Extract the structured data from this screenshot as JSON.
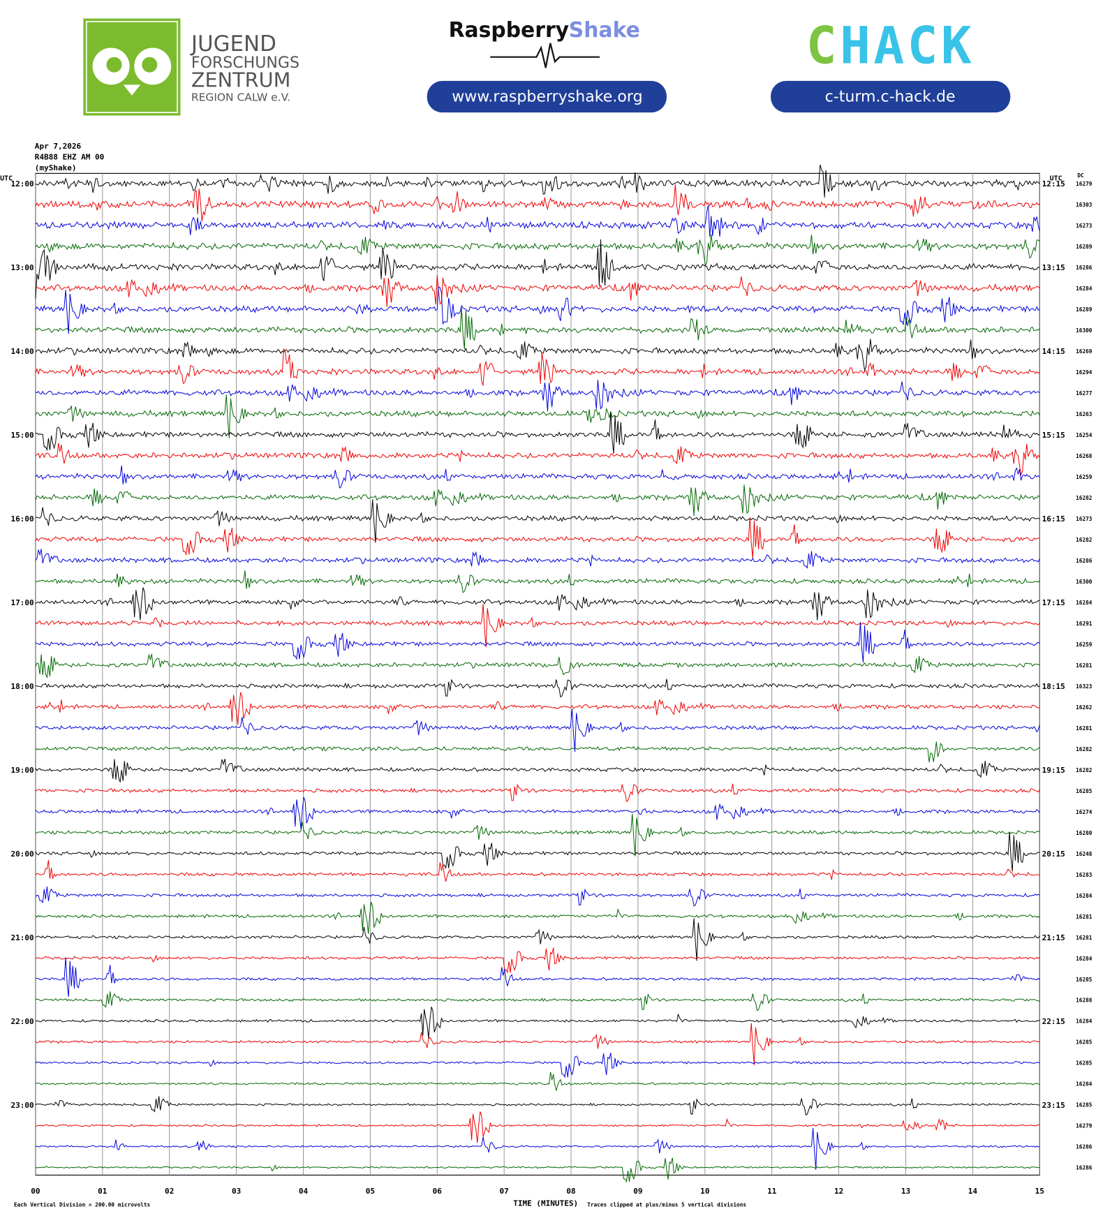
{
  "header": {
    "jfz": {
      "line1": "JUGEND",
      "line2": "FORSCHUNGS",
      "line3": "ZENTRUM",
      "line4": "REGION CALW e.V."
    },
    "rs": {
      "raspberry": "Raspberry",
      "shake": "Shake",
      "url": "www.raspberryshake.org"
    },
    "chack": {
      "c": "C",
      "hack": "HACK",
      "url": "c-turm.c-hack.de"
    }
  },
  "station": {
    "date": "Apr 7,2026",
    "channel": "R4B88 EHZ AM 00",
    "source": "(myShake)"
  },
  "helicorder": {
    "left_unit": "UTC",
    "right_unit": "UTC",
    "dc_label": "DC",
    "left_labels": [
      "12:00",
      "13:00",
      "14:00",
      "15:00",
      "16:00",
      "17:00",
      "18:00",
      "19:00",
      "20:00",
      "21:00",
      "22:00",
      "23:00"
    ],
    "right_labels": [
      "12:15",
      "13:15",
      "14:15",
      "15:15",
      "16:15",
      "17:15",
      "18:15",
      "19:15",
      "20:15",
      "21:15",
      "22:15",
      "23:15"
    ],
    "dc": [
      16279,
      16303,
      16273,
      16289,
      16286,
      16284,
      16289,
      16300,
      16269,
      16294,
      16277,
      16263,
      16254,
      16268,
      16259,
      16282,
      16273,
      16282,
      16286,
      16300,
      16284,
      16291,
      16259,
      16281,
      16323,
      16262,
      16281,
      16282,
      16282,
      16285,
      16274,
      16280,
      16248,
      16283,
      16284,
      16281,
      16281,
      16284,
      16285,
      16288,
      16284,
      16285,
      16285,
      16284,
      16285,
      16279,
      16286,
      16286
    ],
    "x_labels": [
      "00",
      "01",
      "02",
      "03",
      "04",
      "05",
      "06",
      "07",
      "08",
      "09",
      "10",
      "11",
      "12",
      "13",
      "14",
      "15"
    ],
    "x_title": "TIME (MINUTES)",
    "scale_note": "Each Vertical Division =  200.00 microvolts",
    "clip_note": "Traces clipped at plus/minus 5 vertical divisions"
  }
}
